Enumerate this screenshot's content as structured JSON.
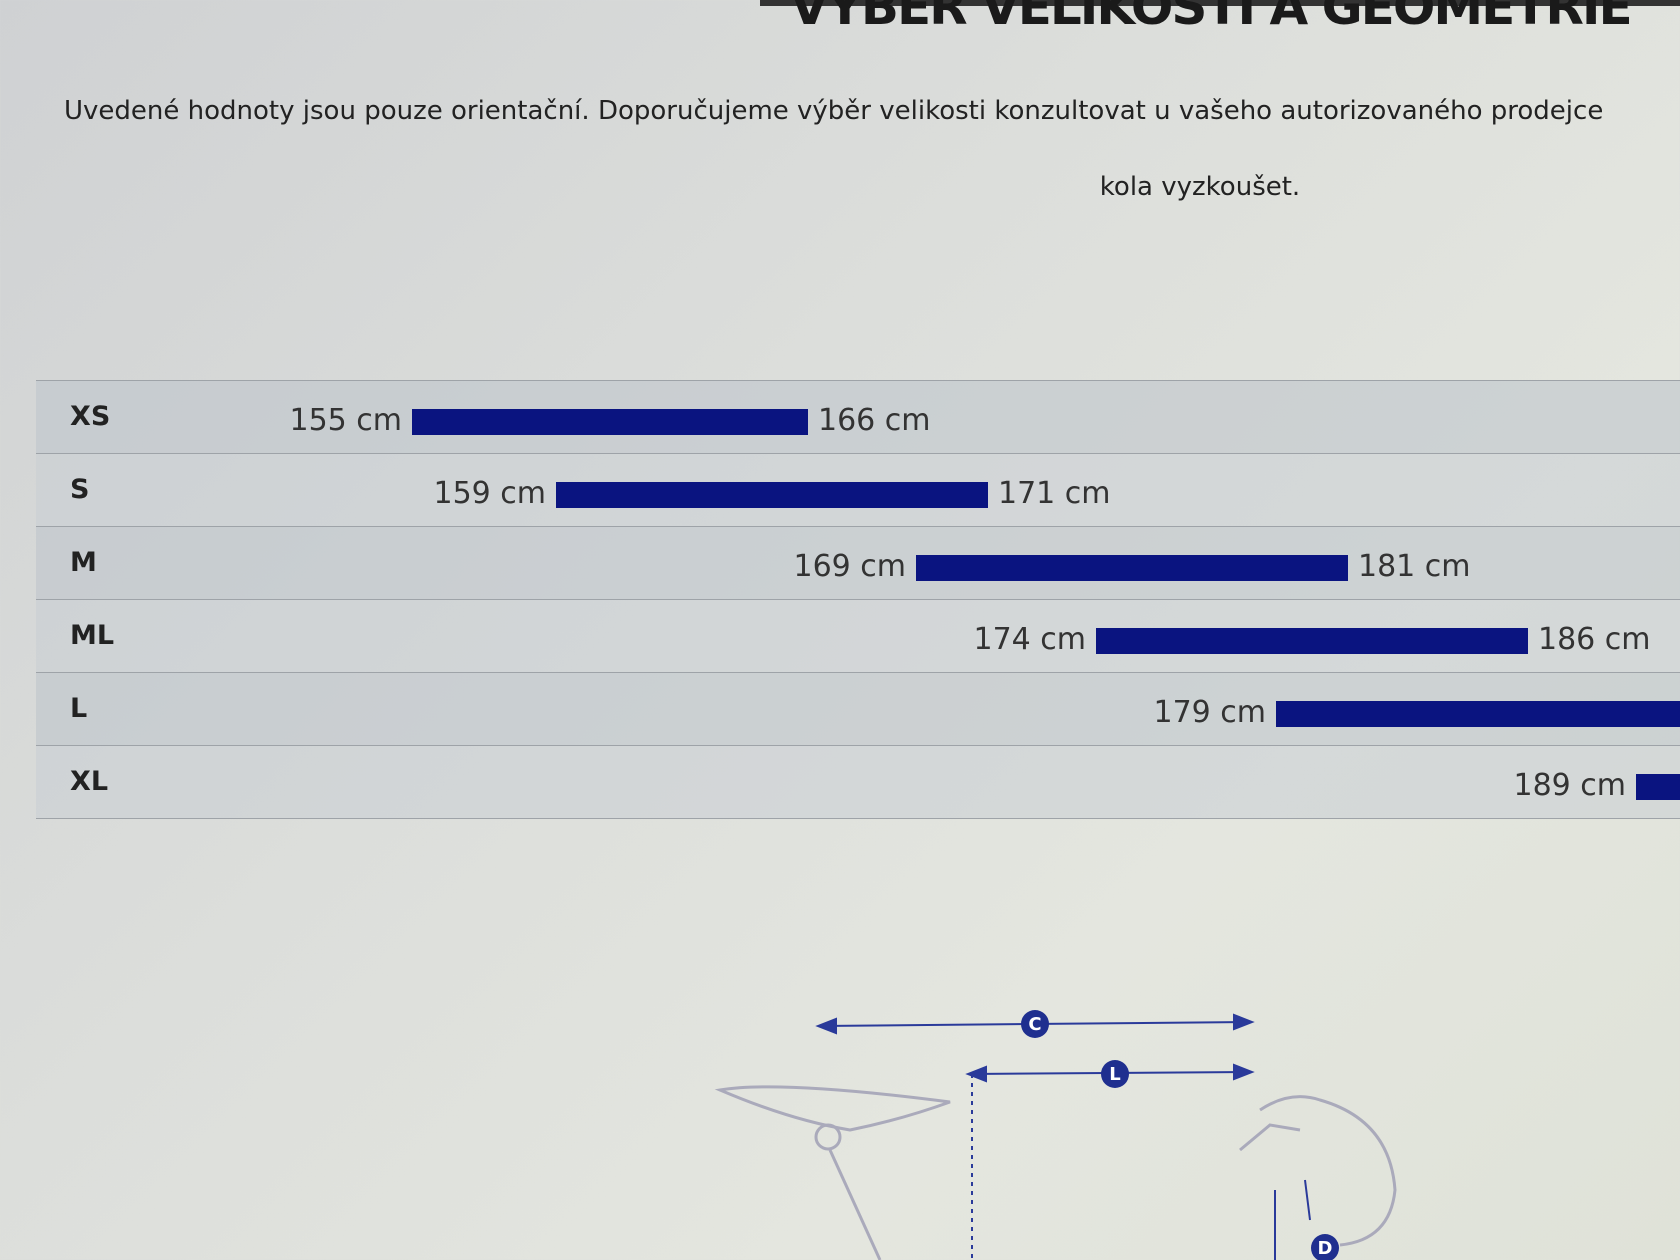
{
  "header": {
    "title": "VÝBĚR VELIKOSTI A GEOMETRIE",
    "intro": "Uvedené hodnoty jsou pouze orientační. Doporučujeme výběr velikosti konzultovat u vašeho autorizovaného prodejce",
    "intro_line2": "kola vyzkoušet."
  },
  "colors": {
    "bar": "#0a1480"
  },
  "chart_data": {
    "type": "bar",
    "orientation": "horizontal-range",
    "unit": "cm",
    "categories": [
      "XS",
      "S",
      "M",
      "ML",
      "L",
      "XL"
    ],
    "ranges": [
      {
        "size": "XS",
        "min": 155,
        "max": 166,
        "min_label": "155 cm",
        "max_label": "166 cm"
      },
      {
        "size": "S",
        "min": 159,
        "max": 171,
        "min_label": "159 cm",
        "max_label": "171 cm"
      },
      {
        "size": "M",
        "min": 169,
        "max": 181,
        "min_label": "169 cm",
        "max_label": "181 cm"
      },
      {
        "size": "ML",
        "min": 174,
        "max": 186,
        "min_label": "174 cm",
        "max_label": "186 cm"
      },
      {
        "size": "L",
        "min": 179,
        "max": null,
        "min_label": "179 cm",
        "max_label": null
      },
      {
        "size": "XL",
        "min": 189,
        "max": null,
        "min_label": "189 cm",
        "max_label": null
      }
    ]
  },
  "diagram": {
    "markers": [
      "C",
      "L",
      "D"
    ]
  }
}
